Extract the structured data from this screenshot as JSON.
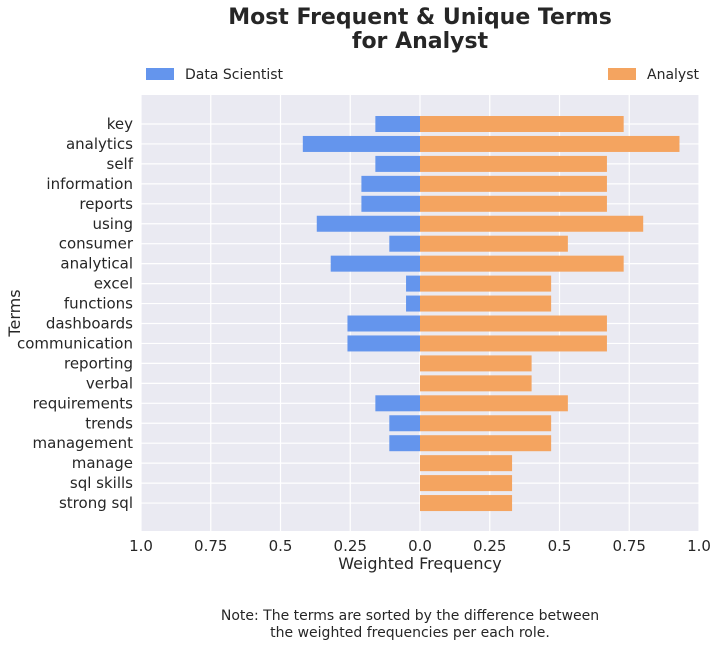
{
  "chart_data": {
    "type": "bar",
    "orientation": "horizontal-diverging",
    "title": "Most Frequent & Unique Terms for Analyst",
    "title_lines": [
      "Most Frequent & Unique Terms",
      "for Analyst"
    ],
    "xlabel": "Weighted Frequency",
    "ylabel": "Terms",
    "xlim": [
      -1.0,
      1.0
    ],
    "xticks": [
      -1.0,
      -0.75,
      -0.5,
      -0.25,
      0.0,
      0.25,
      0.5,
      0.75,
      1.0
    ],
    "xtick_labels": [
      "1.0",
      "0.75",
      "0.5",
      "0.25",
      "0.0",
      "0.25",
      "0.5",
      "0.75",
      "1.0"
    ],
    "categories": [
      "key",
      "analytics",
      "self",
      "information",
      "reports",
      "using",
      "consumer",
      "analytical",
      "excel",
      "functions",
      "dashboards",
      "communication",
      "reporting",
      "verbal",
      "requirements",
      "trends",
      "management",
      "manage",
      "sql skills",
      "strong sql"
    ],
    "series": [
      {
        "name": "Data Scientist",
        "color": "#6495ed",
        "side": "left",
        "values": [
          0.16,
          0.42,
          0.16,
          0.21,
          0.21,
          0.37,
          0.11,
          0.32,
          0.05,
          0.05,
          0.26,
          0.26,
          0.0,
          0.0,
          0.16,
          0.11,
          0.11,
          0.0,
          0.0,
          0.0
        ]
      },
      {
        "name": "Analyst",
        "color": "#f4a460",
        "side": "right",
        "values": [
          0.73,
          0.93,
          0.67,
          0.67,
          0.67,
          0.8,
          0.53,
          0.73,
          0.47,
          0.47,
          0.67,
          0.67,
          0.4,
          0.4,
          0.53,
          0.47,
          0.47,
          0.33,
          0.33,
          0.33
        ]
      }
    ],
    "grid": true,
    "legend_placement": "top, split left and right",
    "colors": {
      "plot_background": "#eaeaf2",
      "grid": "#ffffff"
    },
    "note_lines": [
      "Note: The terms are sorted by the difference between",
      "the weighted frequencies per each role."
    ]
  }
}
